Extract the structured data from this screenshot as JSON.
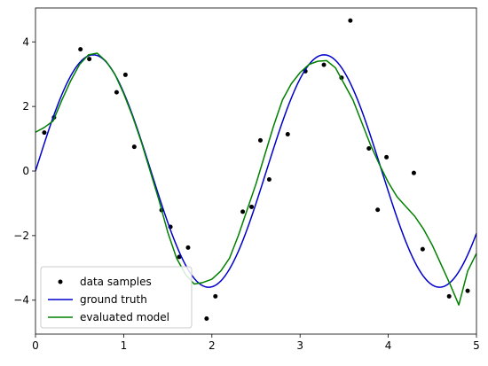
{
  "chart_data": {
    "type": "line",
    "title": "",
    "xlabel": "",
    "ylabel": "",
    "xlim": [
      0,
      5
    ],
    "ylim": [
      -5.05,
      5.05
    ],
    "xticks": [
      0,
      1,
      2,
      3,
      4,
      5
    ],
    "yticks": [
      -4,
      -2,
      0,
      2,
      4
    ],
    "xtick_labels": [
      "0",
      "1",
      "2",
      "3",
      "4",
      "5"
    ],
    "ytick_labels": [
      "−4",
      "−2",
      "0",
      "2",
      "4"
    ],
    "grid": false,
    "legend_position": "lower-left",
    "legend": [
      "data samples",
      "ground truth",
      "evaluated model"
    ],
    "series": [
      {
        "name": "data samples",
        "kind": "scatter",
        "color": "#000000",
        "x": [
          0.1,
          0.21,
          0.51,
          0.61,
          0.92,
          1.02,
          1.12,
          1.43,
          1.53,
          1.63,
          1.73,
          1.94,
          2.04,
          2.35,
          2.45,
          2.55,
          2.65,
          2.86,
          3.06,
          3.27,
          3.47,
          3.57,
          3.78,
          3.88,
          3.98,
          4.29,
          4.39,
          4.69,
          4.9
        ],
        "y": [
          1.19,
          1.66,
          3.77,
          3.47,
          2.44,
          2.98,
          0.75,
          -1.21,
          -1.73,
          -2.66,
          -2.37,
          -4.57,
          -3.88,
          -1.26,
          -1.11,
          0.95,
          -0.26,
          1.14,
          3.09,
          3.29,
          2.89,
          4.66,
          0.7,
          -1.2,
          0.43,
          -0.06,
          -2.42,
          -3.88,
          -3.71
        ]
      },
      {
        "name": "ground truth",
        "kind": "line",
        "color": "#0000cc",
        "function": "3.6*sin(2.4*x)"
      },
      {
        "name": "evaluated model",
        "kind": "line",
        "color": "#008000",
        "x": [
          0.0,
          0.1,
          0.2,
          0.3,
          0.4,
          0.5,
          0.6,
          0.7,
          0.8,
          0.9,
          1.0,
          1.1,
          1.2,
          1.3,
          1.4,
          1.5,
          1.6,
          1.7,
          1.8,
          1.9,
          2.0,
          2.1,
          2.2,
          2.3,
          2.4,
          2.5,
          2.6,
          2.7,
          2.8,
          2.9,
          3.0,
          3.1,
          3.2,
          3.3,
          3.4,
          3.5,
          3.6,
          3.7,
          3.8,
          3.9,
          4.0,
          4.1,
          4.2,
          4.3,
          4.4,
          4.5,
          4.6,
          4.7,
          4.8,
          4.9,
          5.0
        ],
        "y": [
          1.2,
          1.35,
          1.55,
          2.2,
          2.8,
          3.3,
          3.6,
          3.65,
          3.4,
          3.0,
          2.4,
          1.7,
          0.9,
          0.0,
          -0.9,
          -1.9,
          -2.7,
          -3.2,
          -3.5,
          -3.45,
          -3.35,
          -3.1,
          -2.7,
          -2.0,
          -1.2,
          -0.4,
          0.5,
          1.4,
          2.2,
          2.7,
          3.05,
          3.3,
          3.4,
          3.42,
          3.2,
          2.7,
          2.2,
          1.5,
          0.8,
          0.2,
          -0.35,
          -0.8,
          -1.1,
          -1.4,
          -1.8,
          -2.3,
          -2.9,
          -3.5,
          -4.15,
          -3.1,
          -2.55
        ]
      }
    ]
  }
}
